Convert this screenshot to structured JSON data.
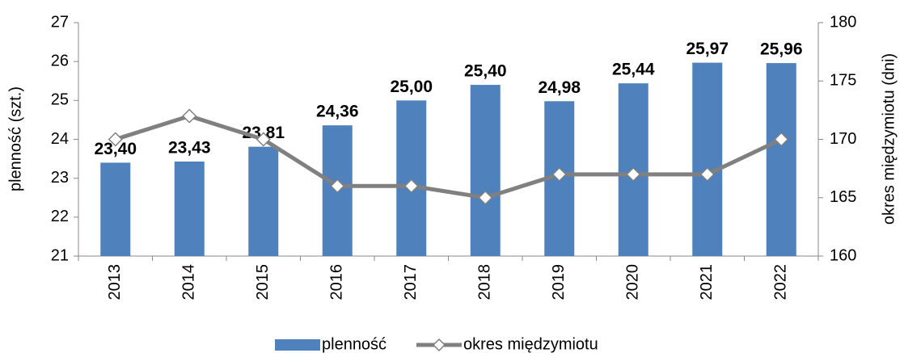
{
  "chart_data": {
    "type": "bar",
    "categories": [
      "2013",
      "2014",
      "2015",
      "2016",
      "2017",
      "2018",
      "2019",
      "2020",
      "2021",
      "2022"
    ],
    "series": [
      {
        "name": "plenność",
        "type": "bar",
        "color": "#4f81bd",
        "values": [
          23.4,
          23.43,
          23.81,
          24.36,
          25.0,
          25.4,
          24.98,
          25.44,
          25.97,
          25.96
        ],
        "value_labels": [
          "23,40",
          "23,43",
          "23,81",
          "24,36",
          "25,00",
          "25,40",
          "24,98",
          "25,44",
          "25,97",
          "25,96"
        ]
      },
      {
        "name": "okres międzymiotu",
        "type": "line",
        "axis": "y2",
        "color": "#808080",
        "values": [
          170,
          172,
          170,
          166,
          166,
          165,
          167,
          167,
          167,
          170
        ]
      }
    ],
    "ylabel": "plenność (szt.)",
    "y2label": "okres międzymiotu (dni)",
    "ylim": [
      21,
      27
    ],
    "yticks": [
      21,
      22,
      23,
      24,
      25,
      26,
      27
    ],
    "y2lim": [
      160,
      180
    ],
    "y2ticks": [
      160,
      165,
      170,
      175,
      180
    ],
    "grid": false,
    "legend": "bottom"
  }
}
